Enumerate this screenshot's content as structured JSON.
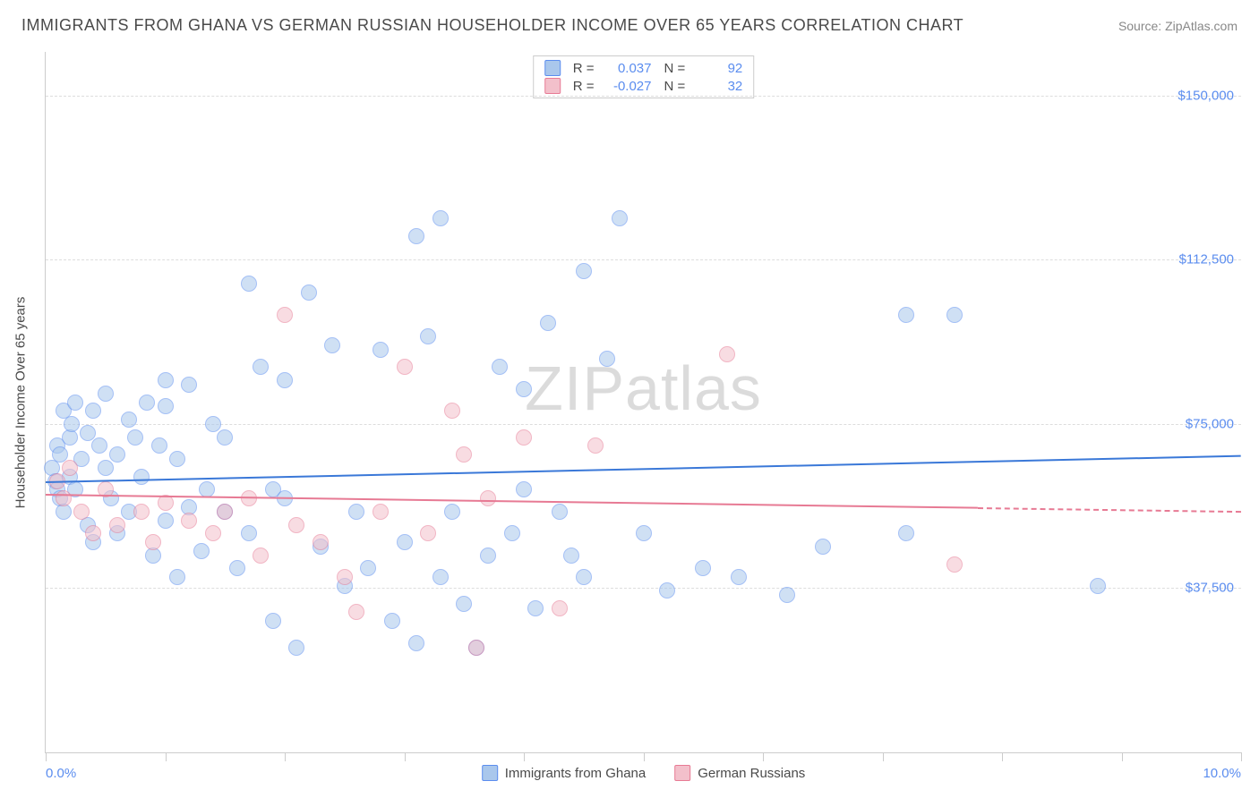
{
  "title": "IMMIGRANTS FROM GHANA VS GERMAN RUSSIAN HOUSEHOLDER INCOME OVER 65 YEARS CORRELATION CHART",
  "source": "Source: ZipAtlas.com",
  "watermark_a": "ZIP",
  "watermark_b": "atlas",
  "chart": {
    "type": "scatter",
    "y_axis_title": "Householder Income Over 65 years",
    "x_min": 0.0,
    "x_max": 10.0,
    "x_label_start": "0.0%",
    "x_label_end": "10.0%",
    "x_ticks": [
      0,
      1,
      2,
      3,
      4,
      5,
      6,
      7,
      8,
      9,
      10
    ],
    "y_min": 0,
    "y_max": 160000,
    "y_gridlines": [
      37500,
      75000,
      112500,
      150000
    ],
    "y_labels": [
      "$37,500",
      "$75,000",
      "$112,500",
      "$150,000"
    ],
    "background_color": "#ffffff",
    "grid_color": "#dddddd",
    "axis_color": "#cccccc",
    "marker_radius": 9,
    "marker_opacity": 0.55,
    "series": [
      {
        "name": "Immigrants from Ghana",
        "fill": "#a9c7ec",
        "stroke": "#5b8def",
        "R_label": "R =",
        "R": "0.037",
        "N_label": "N =",
        "N": "92",
        "trend": {
          "x1": 0.0,
          "y1": 62000,
          "x2": 10.0,
          "y2": 68000,
          "color": "#3a78d8",
          "width": 2
        },
        "points": [
          [
            0.05,
            65000
          ],
          [
            0.08,
            62000
          ],
          [
            0.1,
            70000
          ],
          [
            0.1,
            60000
          ],
          [
            0.12,
            68000
          ],
          [
            0.12,
            58000
          ],
          [
            0.15,
            78000
          ],
          [
            0.15,
            55000
          ],
          [
            0.2,
            72000
          ],
          [
            0.2,
            63000
          ],
          [
            0.22,
            75000
          ],
          [
            0.25,
            80000
          ],
          [
            0.25,
            60000
          ],
          [
            0.3,
            67000
          ],
          [
            0.35,
            73000
          ],
          [
            0.35,
            52000
          ],
          [
            0.4,
            78000
          ],
          [
            0.4,
            48000
          ],
          [
            0.45,
            70000
          ],
          [
            0.5,
            82000
          ],
          [
            0.5,
            65000
          ],
          [
            0.55,
            58000
          ],
          [
            0.6,
            68000
          ],
          [
            0.6,
            50000
          ],
          [
            0.7,
            76000
          ],
          [
            0.7,
            55000
          ],
          [
            0.75,
            72000
          ],
          [
            0.8,
            63000
          ],
          [
            0.85,
            80000
          ],
          [
            0.9,
            45000
          ],
          [
            0.95,
            70000
          ],
          [
            1.0,
            79000
          ],
          [
            1.0,
            53000
          ],
          [
            1.1,
            67000
          ],
          [
            1.1,
            40000
          ],
          [
            1.2,
            84000
          ],
          [
            1.2,
            56000
          ],
          [
            1.3,
            46000
          ],
          [
            1.35,
            60000
          ],
          [
            1.4,
            75000
          ],
          [
            1.5,
            55000
          ],
          [
            1.5,
            72000
          ],
          [
            1.6,
            42000
          ],
          [
            1.7,
            107000
          ],
          [
            1.7,
            50000
          ],
          [
            1.8,
            88000
          ],
          [
            1.9,
            30000
          ],
          [
            1.9,
            60000
          ],
          [
            2.0,
            58000
          ],
          [
            2.1,
            24000
          ],
          [
            2.2,
            105000
          ],
          [
            2.3,
            47000
          ],
          [
            2.4,
            93000
          ],
          [
            2.5,
            38000
          ],
          [
            2.6,
            55000
          ],
          [
            2.7,
            42000
          ],
          [
            2.8,
            92000
          ],
          [
            2.9,
            30000
          ],
          [
            3.0,
            48000
          ],
          [
            3.1,
            118000
          ],
          [
            3.1,
            25000
          ],
          [
            3.2,
            95000
          ],
          [
            3.3,
            40000
          ],
          [
            3.3,
            122000
          ],
          [
            3.4,
            55000
          ],
          [
            3.5,
            34000
          ],
          [
            3.6,
            24000
          ],
          [
            3.7,
            45000
          ],
          [
            3.8,
            88000
          ],
          [
            3.9,
            50000
          ],
          [
            4.0,
            83000
          ],
          [
            4.1,
            33000
          ],
          [
            4.2,
            98000
          ],
          [
            4.3,
            55000
          ],
          [
            4.4,
            45000
          ],
          [
            4.5,
            110000
          ],
          [
            4.5,
            40000
          ],
          [
            4.7,
            90000
          ],
          [
            4.8,
            122000
          ],
          [
            5.0,
            50000
          ],
          [
            5.2,
            37000
          ],
          [
            5.5,
            42000
          ],
          [
            5.8,
            40000
          ],
          [
            6.2,
            36000
          ],
          [
            6.5,
            47000
          ],
          [
            7.2,
            100000
          ],
          [
            7.2,
            50000
          ],
          [
            7.6,
            100000
          ],
          [
            8.8,
            38000
          ],
          [
            4.0,
            60000
          ],
          [
            2.0,
            85000
          ],
          [
            1.0,
            85000
          ]
        ]
      },
      {
        "name": "German Russians",
        "fill": "#f3c0cb",
        "stroke": "#e77a94",
        "R_label": "R =",
        "R": "-0.027",
        "N_label": "N =",
        "N": "32",
        "trend": {
          "x1": 0.0,
          "y1": 59000,
          "x2": 7.8,
          "y2": 56000,
          "color": "#e77a94",
          "width": 2,
          "dash_to_x": 10.0
        },
        "points": [
          [
            0.1,
            62000
          ],
          [
            0.15,
            58000
          ],
          [
            0.2,
            65000
          ],
          [
            0.3,
            55000
          ],
          [
            0.4,
            50000
          ],
          [
            0.5,
            60000
          ],
          [
            0.6,
            52000
          ],
          [
            0.8,
            55000
          ],
          [
            0.9,
            48000
          ],
          [
            1.0,
            57000
          ],
          [
            1.2,
            53000
          ],
          [
            1.4,
            50000
          ],
          [
            1.5,
            55000
          ],
          [
            1.7,
            58000
          ],
          [
            1.8,
            45000
          ],
          [
            2.0,
            100000
          ],
          [
            2.1,
            52000
          ],
          [
            2.3,
            48000
          ],
          [
            2.5,
            40000
          ],
          [
            2.6,
            32000
          ],
          [
            2.8,
            55000
          ],
          [
            3.0,
            88000
          ],
          [
            3.2,
            50000
          ],
          [
            3.4,
            78000
          ],
          [
            3.5,
            68000
          ],
          [
            3.6,
            24000
          ],
          [
            3.7,
            58000
          ],
          [
            4.0,
            72000
          ],
          [
            4.3,
            33000
          ],
          [
            4.6,
            70000
          ],
          [
            5.7,
            91000
          ],
          [
            7.6,
            43000
          ]
        ]
      }
    ],
    "legend_bottom": [
      "Immigrants from Ghana",
      "German Russians"
    ]
  }
}
